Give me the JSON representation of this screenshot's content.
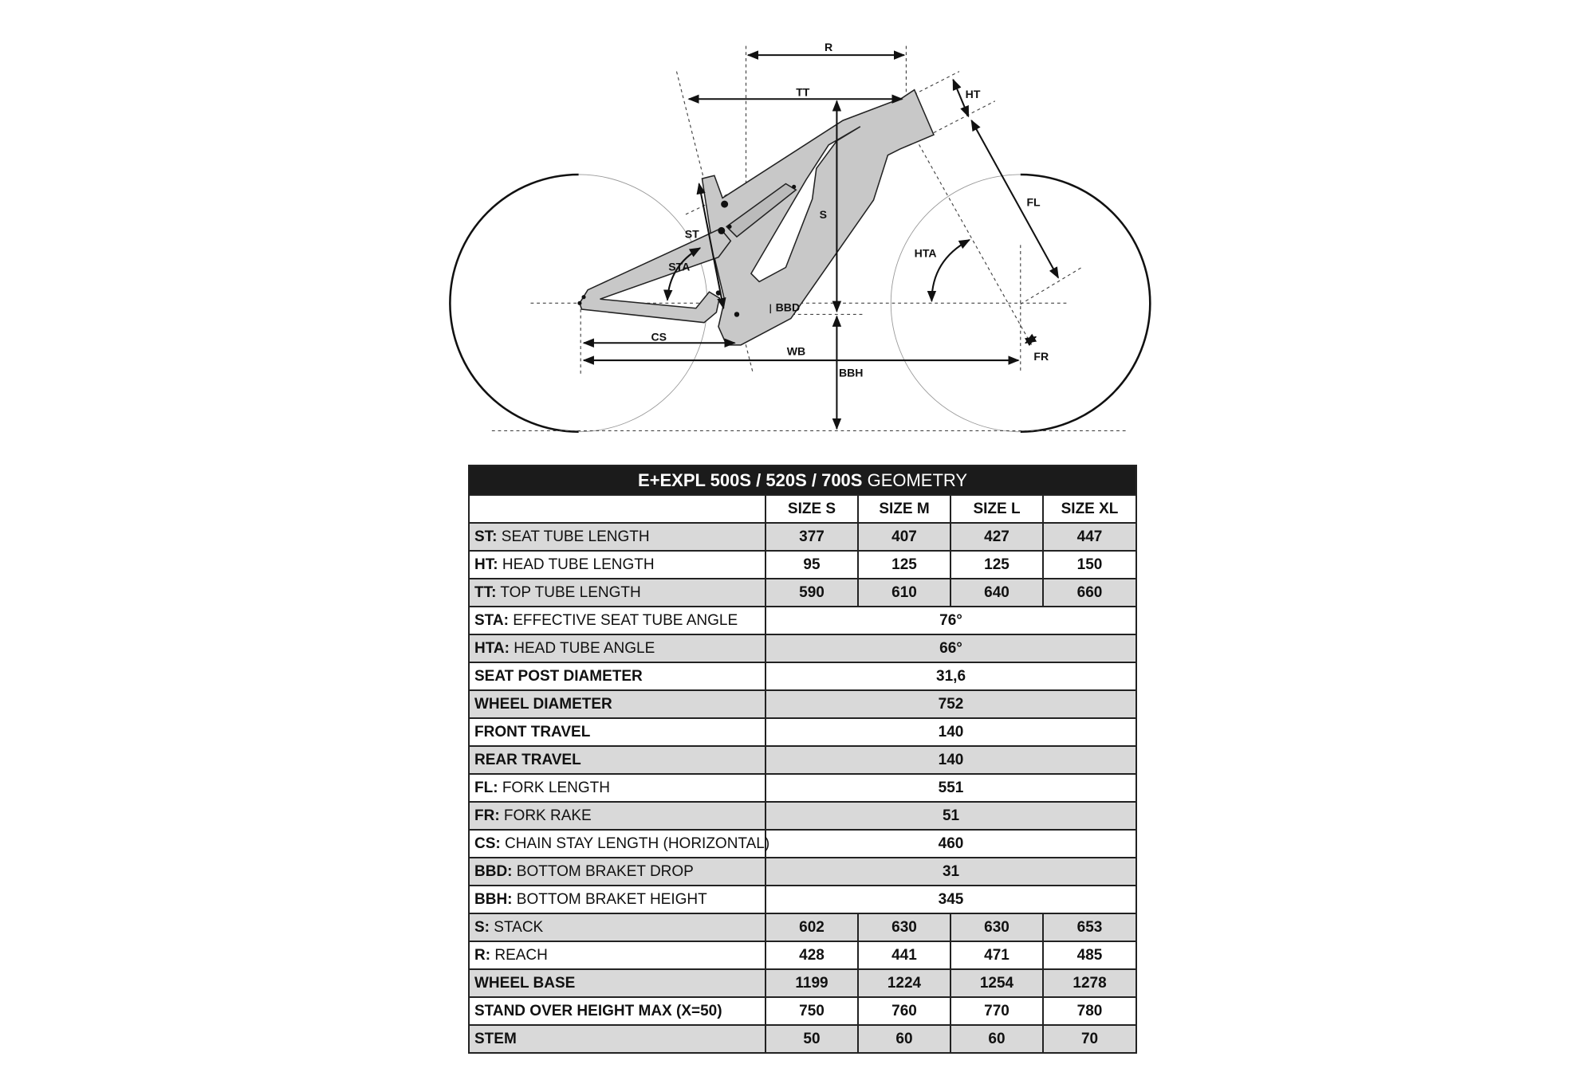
{
  "diagram": {
    "labels": {
      "R": "R",
      "TT": "TT",
      "HT": "HT",
      "FL": "FL",
      "S": "S",
      "ST": "ST",
      "STA": "STA",
      "HTA": "HTA",
      "BBD": "BBD",
      "CS": "CS",
      "WB": "WB",
      "BBH": "BBH",
      "FR": "FR"
    },
    "frame_color": "#c8c8c8"
  },
  "table": {
    "title_bold": "E+EXPL 500S / 520S / 700S",
    "title_regular": " GEOMETRY",
    "headers": [
      "SIZE S",
      "SIZE M",
      "SIZE L",
      "SIZE XL"
    ],
    "rows": [
      {
        "code": "ST:",
        "label": " SEAT TUBE LENGTH",
        "values": [
          "377",
          "407",
          "427",
          "447"
        ]
      },
      {
        "code": "HT:",
        "label": " HEAD TUBE LENGTH",
        "values": [
          "95",
          "125",
          "125",
          "150"
        ]
      },
      {
        "code": "TT:",
        "label": " TOP TUBE LENGTH",
        "values": [
          "590",
          "610",
          "640",
          "660"
        ]
      },
      {
        "code": "STA:",
        "label": " EFFECTIVE SEAT TUBE ANGLE",
        "values": [
          "76°"
        ]
      },
      {
        "code": "HTA:",
        "label": " HEAD TUBE ANGLE",
        "values": [
          "66°"
        ]
      },
      {
        "code": "SEAT POST DIAMETER",
        "label": "",
        "values": [
          "31,6"
        ]
      },
      {
        "code": "WHEEL DIAMETER",
        "label": "",
        "values": [
          "752"
        ]
      },
      {
        "code": "FRONT TRAVEL",
        "label": "",
        "values": [
          "140"
        ]
      },
      {
        "code": "REAR TRAVEL",
        "label": "",
        "values": [
          "140"
        ]
      },
      {
        "code": "FL:",
        "label": " FORK LENGTH",
        "values": [
          "551"
        ]
      },
      {
        "code": "FR:",
        "label": " FORK RAKE",
        "values": [
          "51"
        ]
      },
      {
        "code": "CS:",
        "label": " CHAIN STAY LENGTH (HORIZONTAL)",
        "values": [
          "460"
        ]
      },
      {
        "code": "BBD:",
        "label": " BOTTOM BRAKET DROP",
        "values": [
          "31"
        ]
      },
      {
        "code": "BBH:",
        "label": " BOTTOM BRAKET HEIGHT",
        "values": [
          "345"
        ]
      },
      {
        "code": "S:",
        "label": " STACK",
        "values": [
          "602",
          "630",
          "630",
          "653"
        ]
      },
      {
        "code": "R:",
        "label": " REACH",
        "values": [
          "428",
          "441",
          "471",
          "485"
        ]
      },
      {
        "code": "WHEEL BASE",
        "label": "",
        "values": [
          "1199",
          "1224",
          "1254",
          "1278"
        ]
      },
      {
        "code": "STAND OVER HEIGHT MAX (X=50)",
        "label": "",
        "values": [
          "750",
          "760",
          "770",
          "780"
        ]
      },
      {
        "code": "STEM",
        "label": "",
        "values": [
          "50",
          "60",
          "60",
          "70"
        ]
      }
    ]
  }
}
